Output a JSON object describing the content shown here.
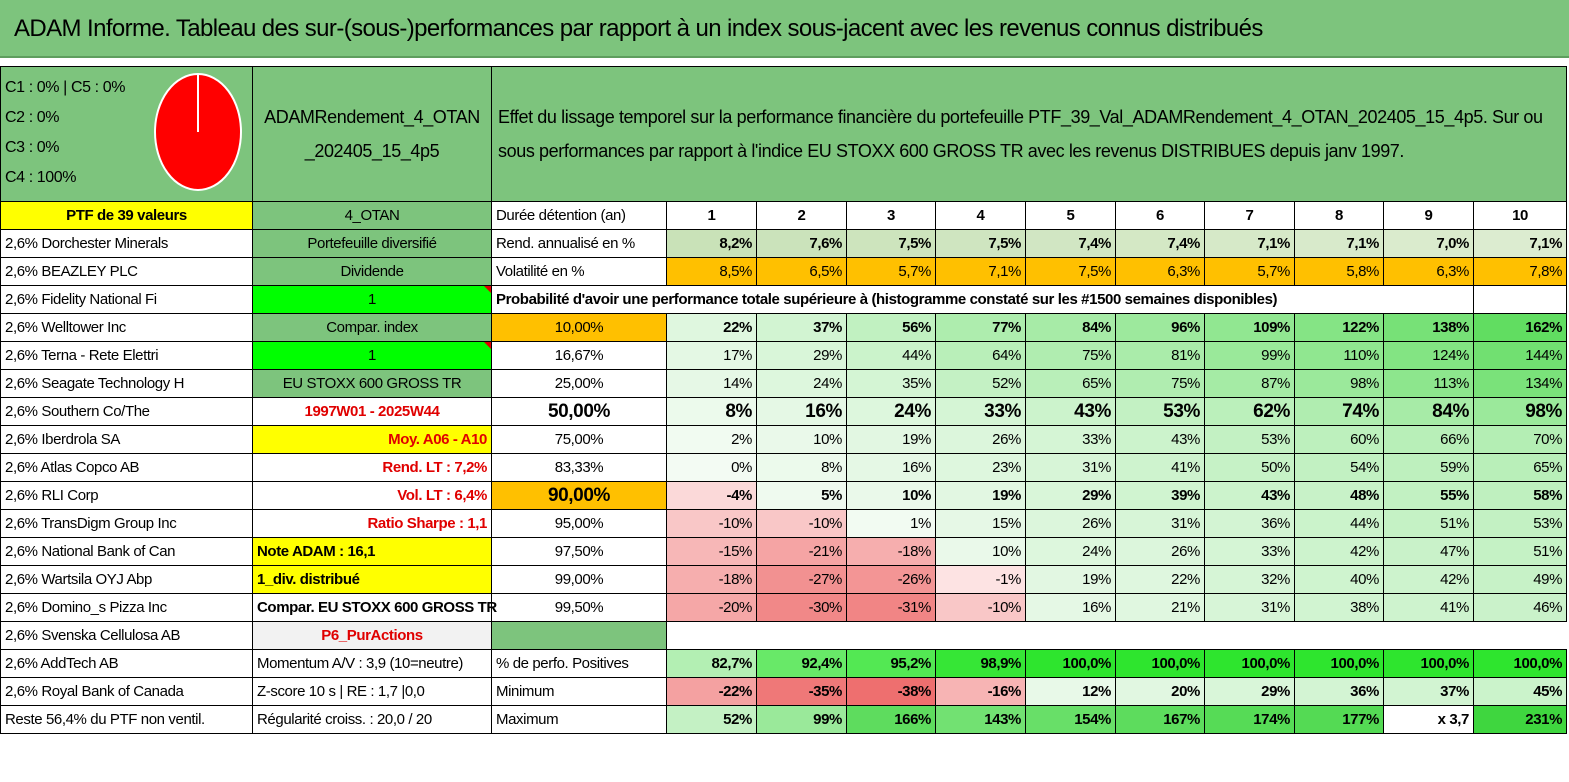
{
  "title": "ADAM Informe. Tableau des sur-(sous-)performances par rapport à un index sous-jacent avec les revenus connus distribués",
  "composition": {
    "lines": [
      "C1 : 0% | C5 : 0%",
      "C2 : 0%",
      "C3 : 0%",
      "C4 : 100%"
    ],
    "pie_color": "#FF0000"
  },
  "product_name": "ADAMRendement_4_OTAN _202405_15_4p5",
  "description": "Effet du lissage temporel sur la performance financière du portefeuille PTF_39_Val_ADAMRendement_4_OTAN_202405_15_4p5. Sur ou sous performances par rapport à l'indice EU STOXX 600 GROSS TR avec les revenus DISTRIBUES depuis janv 1997.",
  "ptf_label": "PTF de 39 valeurs",
  "holdings": [
    "2,6% Dorchester Minerals",
    "2,6% BEAZLEY PLC",
    "2,6% Fidelity National Fi",
    "2,6% Welltower Inc",
    "2,6% Terna - Rete Elettri",
    "2,6% Seagate Technology H",
    "2,6% Southern Co/The",
    "2,6% Iberdrola SA",
    "2,6% Atlas Copco AB",
    "2,6% RLI Corp",
    "2,6% TransDigm Group Inc",
    "2,6% National Bank of Can",
    "2,6% Wartsila OYJ Abp",
    "2,6% Domino_s Pizza Inc",
    "2,6% Svenska Cellulosa AB",
    "2,6% AddTech AB",
    "2,6% Royal Bank of Canada",
    "Reste 56,4% du PTF non ventil."
  ],
  "info": [
    "4_OTAN",
    "Portefeuille diversifié",
    "Dividende",
    "1",
    "Compar. index",
    "1",
    "EU STOXX 600 GROSS TR",
    "1997W01 - 2025W44",
    "Moy. A06 - A10",
    "Rend. LT : 7,2%",
    "Vol. LT : 6,4%",
    "Ratio Sharpe : 1,1",
    "Note ADAM : 16,1",
    "1_div. distribué",
    "Compar. EU STOXX 600 GROSS TR",
    "P6_PurActions",
    "Momentum A/V : 3,9 (10=neutre)",
    "Z-score 10 s | RE : 1,7 |0,0",
    "Régularité croiss. : 20,0 / 20"
  ],
  "table": {
    "duration_label": "Durée détention (an)",
    "years": [
      "1",
      "2",
      "3",
      "4",
      "5",
      "6",
      "7",
      "8",
      "9",
      "10"
    ],
    "rend_label": "Rend. annualisé en %",
    "rend": [
      "8,2%",
      "7,6%",
      "7,5%",
      "7,5%",
      "7,4%",
      "7,4%",
      "7,1%",
      "7,1%",
      "7,0%",
      "7,1%"
    ],
    "vol_label": "Volatilité en %",
    "vol": [
      "8,5%",
      "6,5%",
      "5,7%",
      "7,1%",
      "7,5%",
      "6,3%",
      "5,7%",
      "5,8%",
      "6,3%",
      "7,8%"
    ],
    "prob_title": "Probabilité d'avoir une performance totale supérieure à (histogramme constaté sur les #1500 semaines disponibles)",
    "prob_rows": [
      {
        "label": "10,00%",
        "values": [
          "22%",
          "37%",
          "56%",
          "77%",
          "84%",
          "96%",
          "109%",
          "122%",
          "138%",
          "162%"
        ]
      },
      {
        "label": "16,67%",
        "values": [
          "17%",
          "29%",
          "44%",
          "64%",
          "75%",
          "81%",
          "99%",
          "110%",
          "124%",
          "144%"
        ]
      },
      {
        "label": "25,00%",
        "values": [
          "14%",
          "24%",
          "35%",
          "52%",
          "65%",
          "75%",
          "87%",
          "98%",
          "113%",
          "134%"
        ]
      },
      {
        "label": "50,00%",
        "values": [
          "8%",
          "16%",
          "24%",
          "33%",
          "43%",
          "53%",
          "62%",
          "74%",
          "84%",
          "98%"
        ]
      },
      {
        "label": "75,00%",
        "values": [
          "2%",
          "10%",
          "19%",
          "26%",
          "33%",
          "43%",
          "53%",
          "60%",
          "66%",
          "70%"
        ]
      },
      {
        "label": "83,33%",
        "values": [
          "0%",
          "8%",
          "16%",
          "23%",
          "31%",
          "41%",
          "50%",
          "54%",
          "59%",
          "65%"
        ]
      },
      {
        "label": "90,00%",
        "values": [
          "-4%",
          "5%",
          "10%",
          "19%",
          "29%",
          "39%",
          "43%",
          "48%",
          "55%",
          "58%"
        ]
      },
      {
        "label": "95,00%",
        "values": [
          "-10%",
          "-10%",
          "1%",
          "15%",
          "26%",
          "31%",
          "36%",
          "44%",
          "51%",
          "53%"
        ]
      },
      {
        "label": "97,50%",
        "values": [
          "-15%",
          "-21%",
          "-18%",
          "10%",
          "24%",
          "26%",
          "33%",
          "42%",
          "47%",
          "51%"
        ]
      },
      {
        "label": "99,00%",
        "values": [
          "-18%",
          "-27%",
          "-26%",
          "-1%",
          "19%",
          "22%",
          "32%",
          "40%",
          "42%",
          "49%"
        ]
      },
      {
        "label": "99,50%",
        "values": [
          "-20%",
          "-30%",
          "-31%",
          "-10%",
          "16%",
          "21%",
          "31%",
          "38%",
          "41%",
          "46%"
        ]
      }
    ],
    "pos_label": "% de perfo. Positives",
    "pos": [
      "82,7%",
      "92,4%",
      "95,2%",
      "98,9%",
      "100,0%",
      "100,0%",
      "100,0%",
      "100,0%",
      "100,0%",
      "100,0%"
    ],
    "min_label": "Minimum",
    "min": [
      "-22%",
      "-35%",
      "-38%",
      "-16%",
      "12%",
      "20%",
      "29%",
      "36%",
      "37%",
      "45%"
    ],
    "max_label": "Maximum",
    "max": [
      "52%",
      "99%",
      "166%",
      "143%",
      "154%",
      "167%",
      "174%",
      "177%",
      "x 3,7",
      "231%"
    ]
  }
}
